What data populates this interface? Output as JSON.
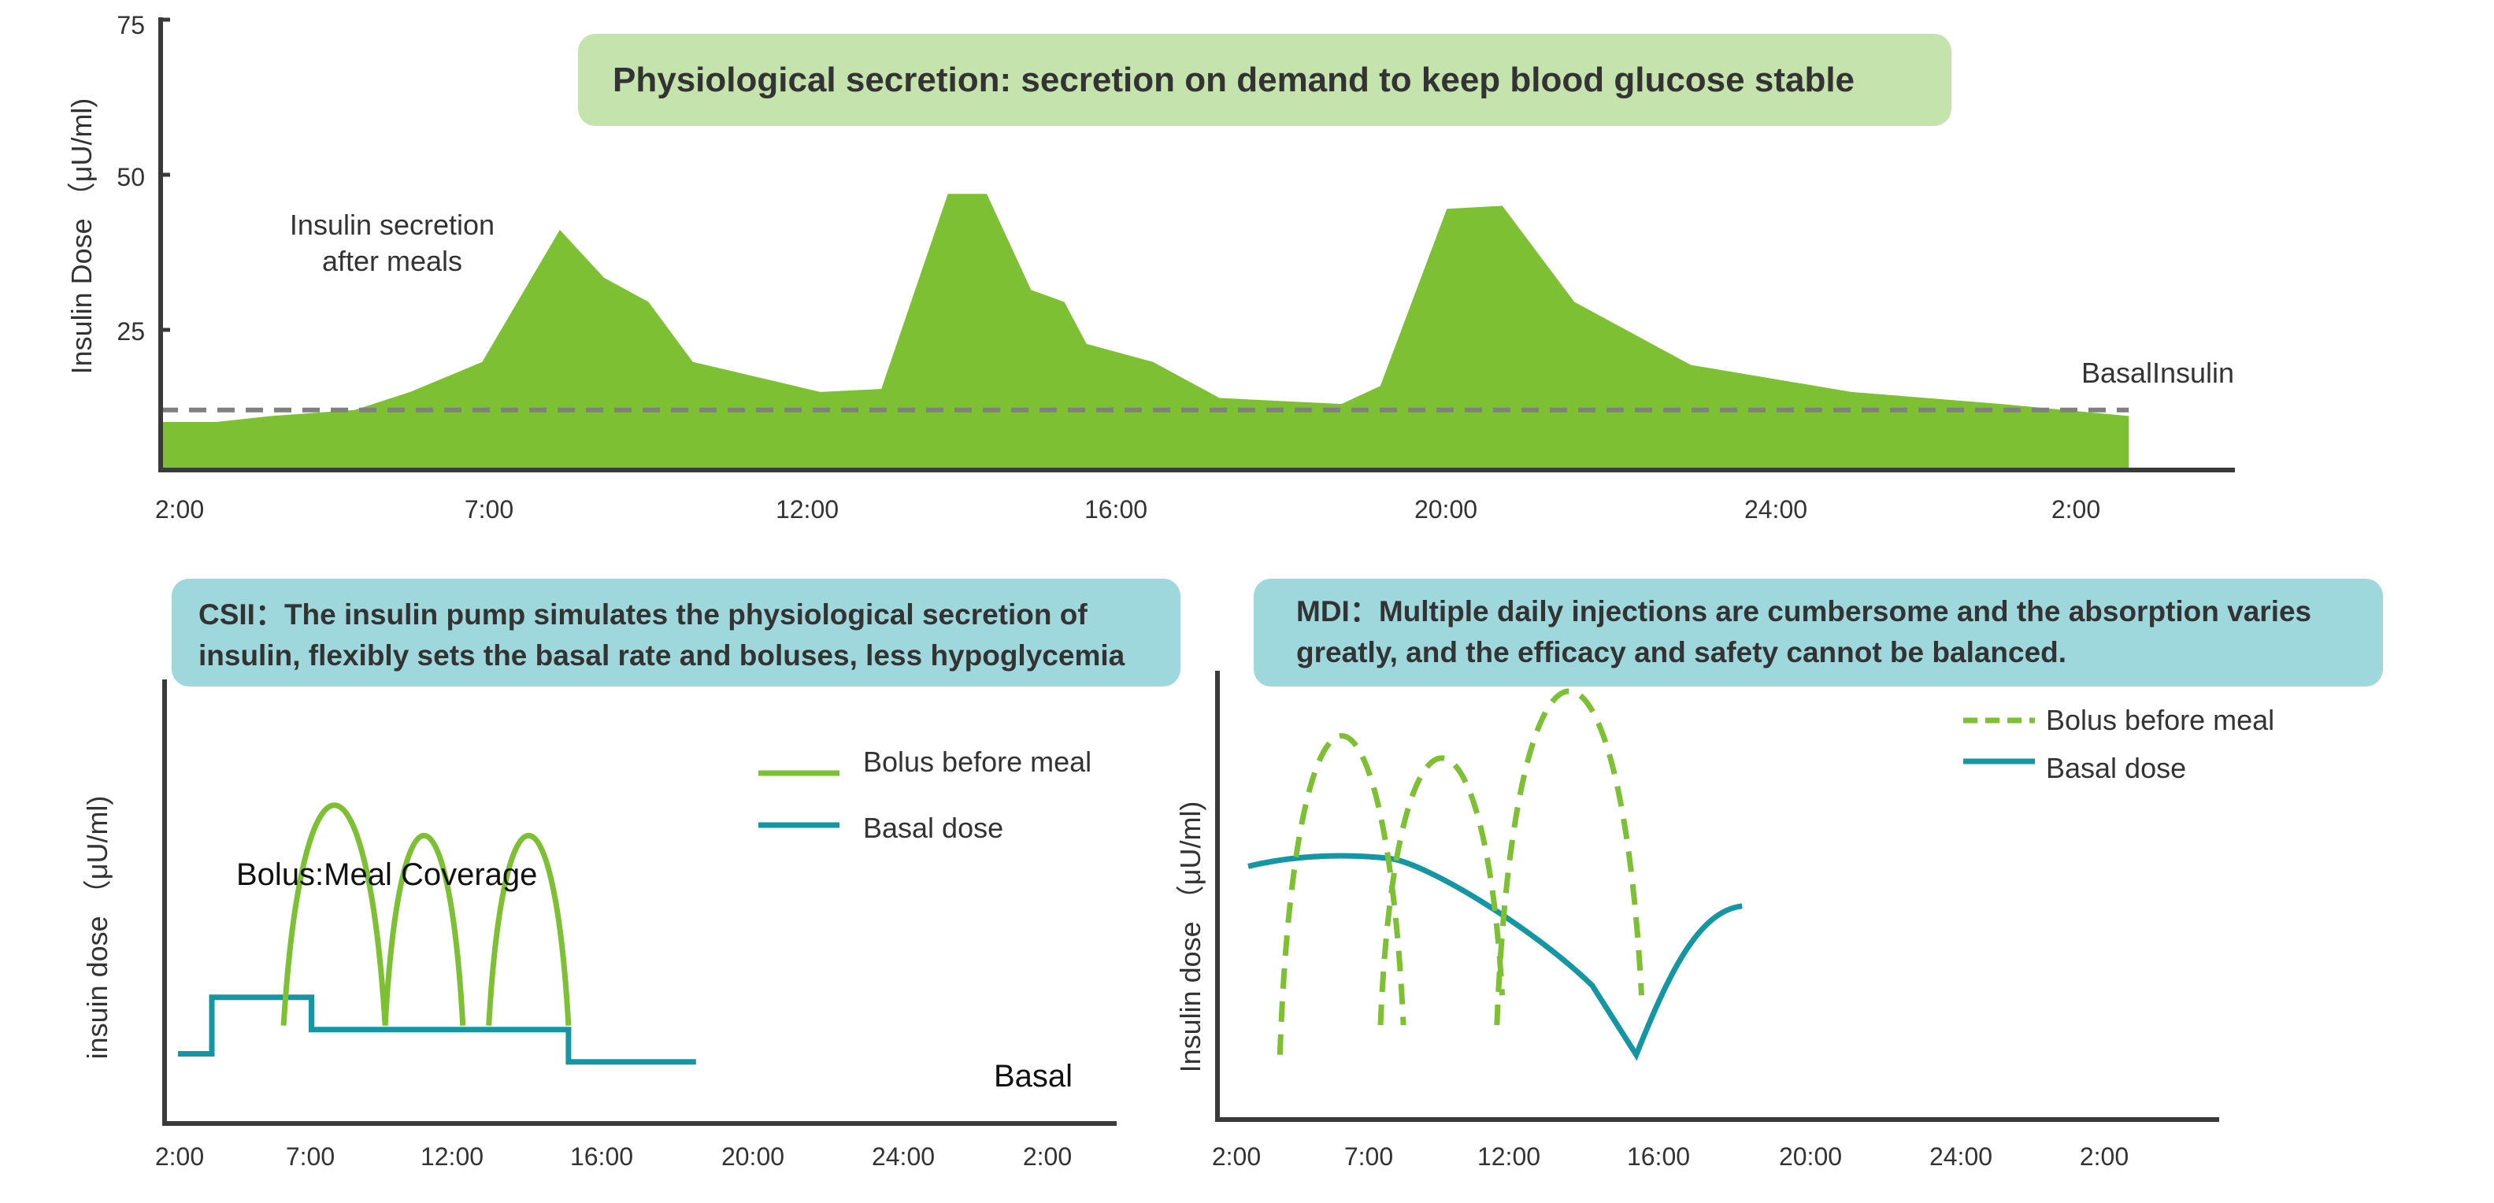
{
  "banners": {
    "top": "Physiological secretion: secretion on demand to keep blood glucose stable",
    "csii_line1": "CSII：The insulin pump simulates the physiological secretion of",
    "csii_line2": "insulin, flexibly sets the basal rate and boluses, less hypoglycemia",
    "mdi_line1": "MDI：Multiple daily injections are cumbersome and the absorption varies",
    "mdi_line2": "greatly, and the efficacy and safety cannot be balanced."
  },
  "colors": {
    "green": "#7dc033",
    "teal": "#1596a3",
    "axis": "#3a3a3a",
    "basal_dash": "#808080"
  },
  "chart_data": [
    {
      "type": "area",
      "ylabel": "Insulin Dose （μU/ml)",
      "xlabel": "",
      "yticks": [
        "75",
        "50",
        "25"
      ],
      "ylim": [
        0,
        75
      ],
      "xticks": [
        "2:00",
        "7:00",
        "12:00",
        "16:00",
        "20:00",
        "24:00",
        "2:00"
      ],
      "annotations": [
        "Insulin secretion",
        "after meals",
        "BasalInsulin"
      ],
      "series": [
        {
          "values": [
            {
              "x": 2.0,
              "y": 8
            },
            {
              "x": 3.0,
              "y": 8
            },
            {
              "x": 4.0,
              "y": 9
            },
            {
              "x": 5.5,
              "y": 10
            },
            {
              "x": 6.5,
              "y": 13
            },
            {
              "x": 7.8,
              "y": 18
            },
            {
              "x": 9.2,
              "y": 40
            },
            {
              "x": 10.0,
              "y": 32
            },
            {
              "x": 10.8,
              "y": 28
            },
            {
              "x": 11.6,
              "y": 18
            },
            {
              "x": 13.9,
              "y": 13
            },
            {
              "x": 15.0,
              "y": 13.5
            },
            {
              "x": 16.2,
              "y": 46
            },
            {
              "x": 16.9,
              "y": 46
            },
            {
              "x": 17.7,
              "y": 30
            },
            {
              "x": 18.3,
              "y": 28
            },
            {
              "x": 18.7,
              "y": 21
            },
            {
              "x": 19.9,
              "y": 18
            },
            {
              "x": 21.1,
              "y": 12
            },
            {
              "x": 23.3,
              "y": 11
            },
            {
              "x": 24.0,
              "y": 14
            },
            {
              "x": 25.2,
              "y": 43.5
            },
            {
              "x": 26.2,
              "y": 44
            },
            {
              "x": 27.5,
              "y": 28
            },
            {
              "x": 29.6,
              "y": 17.5
            },
            {
              "x": 32.5,
              "y": 13
            },
            {
              "x": 35.2,
              "y": 11
            },
            {
              "x": 37.5,
              "y": 9
            }
          ]
        },
        {
          "name": "BasalInsulin",
          "values": [
            {
              "x": 2.0,
              "y": 10
            },
            {
              "x": 37.5,
              "y": 10
            }
          ]
        }
      ]
    },
    {
      "type": "line",
      "ylabel": "insuin dose （μU/ml)",
      "xlabel": "",
      "xticks": [
        "2:00",
        "7:00",
        "12:00",
        "16:00",
        "20:00",
        "24:00",
        "2:00"
      ],
      "annotations": [
        "Bolus:Meal Coverage",
        "Basal"
      ],
      "ylim": [
        0,
        60
      ],
      "series": [
        {
          "name": "Bolus before meal",
          "arcs": [
            {
              "x": [
                7.3,
                12.4
              ],
              "peak": 42
            },
            {
              "x": 12.4,
              "to": 16.3,
              "peak": 37
            },
            {
              "x": 17.6,
              "to": 21.6,
              "peak": 37
            }
          ]
        },
        {
          "name": "Basal dose",
          "values": [
            {
              "x": 2.0,
              "y": 6
            },
            {
              "x": 3.7,
              "y": 6
            },
            {
              "x": 3.7,
              "y": 13
            },
            {
              "x": 8.7,
              "y": 13
            },
            {
              "x": 8.7,
              "y": 9
            },
            {
              "x": 21.6,
              "y": 9
            },
            {
              "x": 21.6,
              "y": 5
            },
            {
              "x": 28.0,
              "y": 5
            }
          ]
        }
      ]
    },
    {
      "type": "line",
      "ylabel": "Insulin dose （μU/ml)",
      "xlabel": "",
      "xticks": [
        "2:00",
        "7:00",
        "12:00",
        "16:00",
        "20:00",
        "24:00",
        "2:00"
      ],
      "ylim": [
        0,
        60
      ],
      "series": [
        {
          "name": "Bolus before meal",
          "arcs": [
            {
              "from": 3.8,
              "to": 10.8,
              "peak": 40
            },
            {
              "from": 9.5,
              "to": 16.4,
              "peak": 36
            },
            {
              "from": 16.1,
              "to": 24.3,
              "peak": 45
            }
          ]
        },
        {
          "name": "Basal dose",
          "values": [
            {
              "x": 2.0,
              "y": 21
            },
            {
              "x": 8.0,
              "y": 22
            },
            {
              "x": 13.0,
              "y": 20
            },
            {
              "x": 18.0,
              "y": 15
            },
            {
              "x": 21.5,
              "y": 9
            },
            {
              "x": 24.0,
              "y": 2
            },
            {
              "x": 27.0,
              "y": 14
            },
            {
              "x": 30.0,
              "y": 17
            }
          ]
        }
      ]
    }
  ]
}
